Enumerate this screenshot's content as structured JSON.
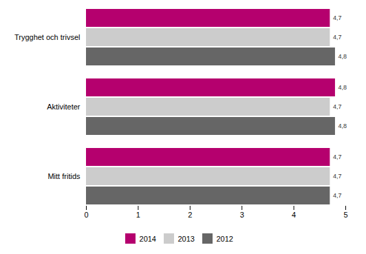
{
  "chart_data": {
    "type": "bar",
    "orientation": "horizontal",
    "categories": [
      "Trygghet och trivsel",
      "Aktiviteter",
      "Mitt fritids"
    ],
    "series": [
      {
        "name": "2014",
        "color": "#b5006e",
        "values": [
          4.7,
          4.8,
          4.7
        ],
        "value_labels": [
          "4,7",
          "4,8",
          "4,7"
        ]
      },
      {
        "name": "2013",
        "color": "#cccccc",
        "values": [
          4.7,
          4.7,
          4.7
        ],
        "value_labels": [
          "4,7",
          "4,7",
          "4,7"
        ]
      },
      {
        "name": "2012",
        "color": "#666666",
        "values": [
          4.8,
          4.8,
          4.7
        ],
        "value_labels": [
          "4,8",
          "4,8",
          "4,7"
        ]
      }
    ],
    "xlim": [
      0,
      5
    ],
    "xticks": [
      0,
      1,
      2,
      3,
      4,
      5
    ],
    "data_labels": true,
    "legend": "bottom",
    "grid": false
  }
}
